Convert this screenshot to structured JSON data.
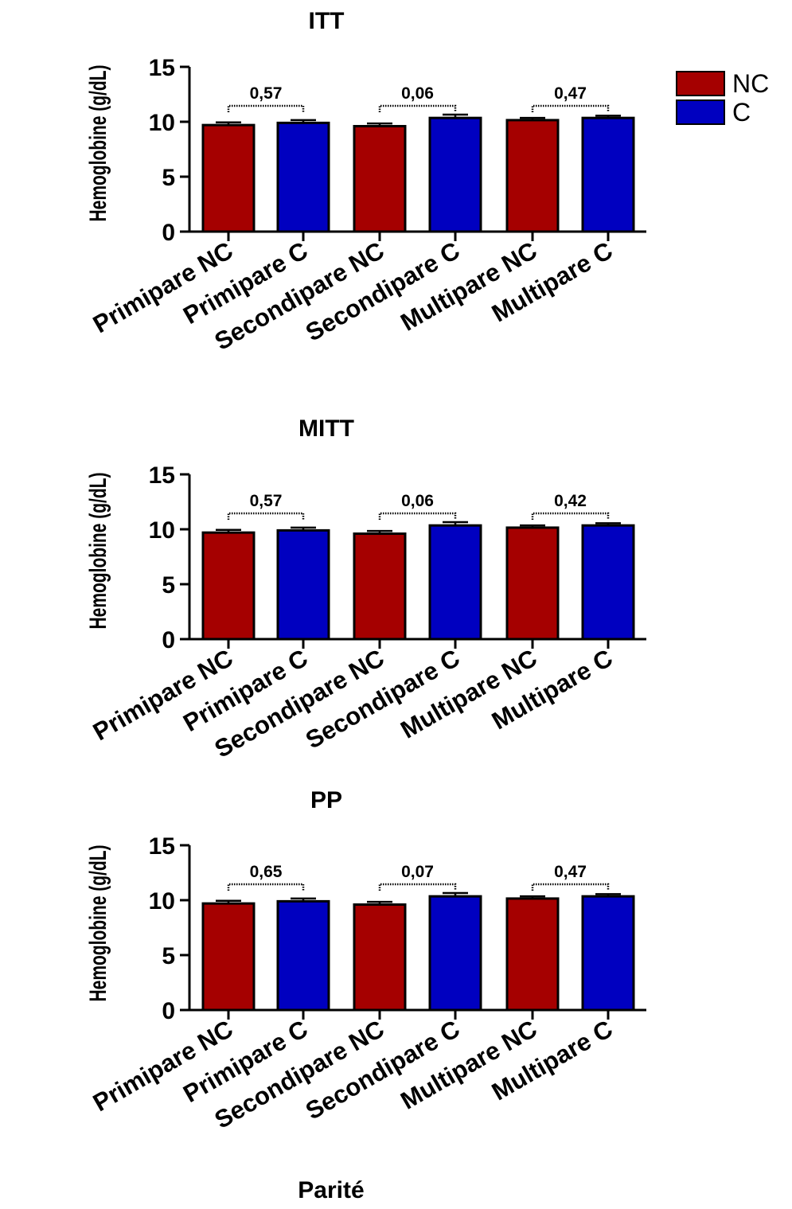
{
  "colors": {
    "NC": "#a50000",
    "C": "#0000c0"
  },
  "legend": [
    {
      "label": "NC",
      "series": "NC"
    },
    {
      "label": "C",
      "series": "C"
    }
  ],
  "xaxis_title": "Parité",
  "chart_data": [
    {
      "type": "bar",
      "title": "ITT",
      "ylabel": "Hemoglobine (g/dL)",
      "ylim": [
        0,
        15
      ],
      "yticks": [
        "0",
        "5",
        "10",
        "15"
      ],
      "categories": [
        "Primipare NC",
        "Primipare C",
        "Secondipare NC",
        "Secondipare C",
        "Multipare NC",
        "Multipare C"
      ],
      "series_of_bar": [
        "NC",
        "C",
        "NC",
        "C",
        "NC",
        "C"
      ],
      "values": [
        9.7,
        9.9,
        9.6,
        10.35,
        10.15,
        10.35
      ],
      "errors": [
        0.25,
        0.25,
        0.25,
        0.3,
        0.2,
        0.2
      ],
      "pvalues": [
        {
          "label": "0,57",
          "from": 0,
          "to": 1
        },
        {
          "label": "0,06",
          "from": 2,
          "to": 3
        },
        {
          "label": "0,47",
          "from": 4,
          "to": 5
        }
      ]
    },
    {
      "type": "bar",
      "title": "MITT",
      "ylabel": "Hemoglobine (g/dL)",
      "ylim": [
        0,
        15
      ],
      "yticks": [
        "0",
        "5",
        "10",
        "15"
      ],
      "categories": [
        "Primipare NC",
        "Primipare C",
        "Secondipare NC",
        "Secondipare C",
        "Multipare NC",
        "Multipare C"
      ],
      "series_of_bar": [
        "NC",
        "C",
        "NC",
        "C",
        "NC",
        "C"
      ],
      "values": [
        9.7,
        9.9,
        9.6,
        10.35,
        10.15,
        10.35
      ],
      "errors": [
        0.25,
        0.25,
        0.25,
        0.3,
        0.2,
        0.2
      ],
      "pvalues": [
        {
          "label": "0,57",
          "from": 0,
          "to": 1
        },
        {
          "label": "0,06",
          "from": 2,
          "to": 3
        },
        {
          "label": "0,42",
          "from": 4,
          "to": 5
        }
      ]
    },
    {
      "type": "bar",
      "title": "PP",
      "ylabel": "Hemoglobine (g/dL)",
      "ylim": [
        0,
        15
      ],
      "yticks": [
        "0",
        "5",
        "10",
        "15"
      ],
      "categories": [
        "Primipare NC",
        "Primipare C",
        "Secondipare NC",
        "Secondipare C",
        "Multipare NC",
        "Multipare C"
      ],
      "series_of_bar": [
        "NC",
        "C",
        "NC",
        "C",
        "NC",
        "C"
      ],
      "values": [
        9.7,
        9.9,
        9.6,
        10.35,
        10.15,
        10.35
      ],
      "errors": [
        0.25,
        0.25,
        0.25,
        0.3,
        0.2,
        0.2
      ],
      "pvalues": [
        {
          "label": "0,65",
          "from": 0,
          "to": 1
        },
        {
          "label": "0,07",
          "from": 2,
          "to": 3
        },
        {
          "label": "0,47",
          "from": 4,
          "to": 5
        }
      ]
    }
  ]
}
